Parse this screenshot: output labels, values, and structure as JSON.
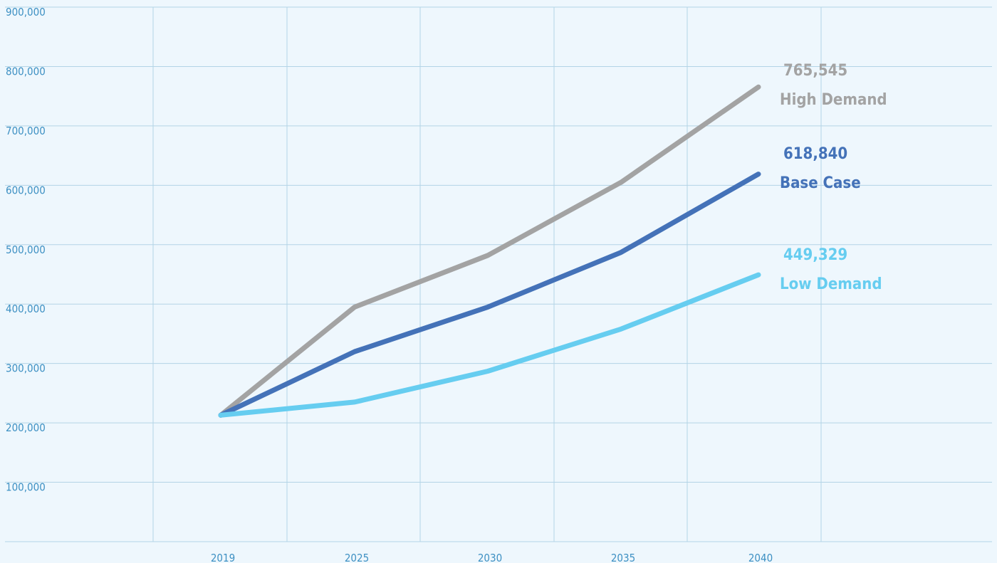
{
  "chart_data": {
    "type": "line",
    "title": "",
    "xlabel": "",
    "ylabel": "",
    "categories": [
      "2019",
      "2025",
      "2030",
      "2035",
      "2040"
    ],
    "ylim": [
      0,
      900000
    ],
    "y_ticks": [
      100000,
      200000,
      300000,
      400000,
      500000,
      600000,
      700000,
      800000,
      900000
    ],
    "y_tick_labels": [
      "100,000",
      "200,000",
      "300,000",
      "400,000",
      "500,000",
      "600,000",
      "700,000",
      "800,000",
      "900,000"
    ],
    "grid": true,
    "series": [
      {
        "name": "High Demand",
        "values": [
          213000,
          395000,
          482000,
          605000,
          765545
        ],
        "end_label": "765,545",
        "color": "#a3a3a3"
      },
      {
        "name": "Base Case",
        "values": [
          213000,
          320000,
          395000,
          487000,
          618840
        ],
        "end_label": "618,840",
        "color": "#4472b8"
      },
      {
        "name": "Low Demand",
        "values": [
          213000,
          235000,
          287000,
          358000,
          449329
        ],
        "end_label": "449,329",
        "color": "#66cdf0"
      }
    ],
    "colors": {
      "background": "#eef7fd",
      "grid": "#b3d4e6",
      "tick_text": "#3d90c3"
    }
  }
}
